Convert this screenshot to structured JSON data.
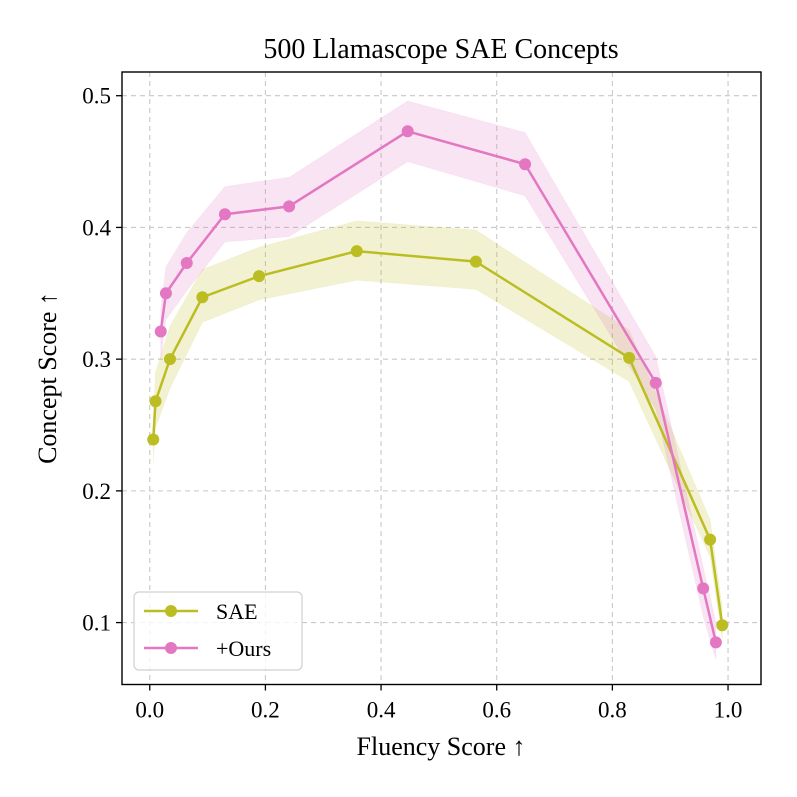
{
  "chart_data": {
    "type": "line",
    "title": "500 Llamascope SAE Concepts",
    "xlabel": "Fluency Score ↑",
    "ylabel": "Concept Score ↑",
    "xlim": [
      -0.048,
      1.057
    ],
    "ylim": [
      0.053,
      0.518
    ],
    "xticks": [
      0.0,
      0.2,
      0.4,
      0.6,
      0.8,
      1.0
    ],
    "xtick_labels": [
      "0.0",
      "0.2",
      "0.4",
      "0.6",
      "0.8",
      "1.0"
    ],
    "yticks": [
      0.1,
      0.2,
      0.3,
      0.4,
      0.5
    ],
    "ytick_labels": [
      "0.1",
      "0.2",
      "0.3",
      "0.4",
      "0.5"
    ],
    "grid": true,
    "legend_position": "bottom-left",
    "series": [
      {
        "name": "SAE",
        "color": "#bcbd22",
        "x": [
          0.006,
          0.01,
          0.035,
          0.091,
          0.189,
          0.358,
          0.564,
          0.829,
          0.969,
          0.99
        ],
        "y": [
          0.239,
          0.268,
          0.3,
          0.347,
          0.363,
          0.382,
          0.374,
          0.301,
          0.163,
          0.098
        ],
        "band_upper": [
          0.255,
          0.29,
          0.325,
          0.368,
          0.385,
          0.405,
          0.398,
          0.322,
          0.178,
          0.111
        ],
        "band_lower": [
          0.221,
          0.248,
          0.278,
          0.328,
          0.345,
          0.36,
          0.353,
          0.283,
          0.15,
          0.087
        ]
      },
      {
        "name": "+Ours",
        "color": "#e377c2",
        "x": [
          0.019,
          0.028,
          0.064,
          0.13,
          0.241,
          0.446,
          0.649,
          0.875,
          0.957,
          0.979
        ],
        "y": [
          0.321,
          0.35,
          0.373,
          0.41,
          0.416,
          0.473,
          0.448,
          0.282,
          0.126,
          0.085
        ],
        "band_upper": [
          0.338,
          0.37,
          0.396,
          0.431,
          0.438,
          0.496,
          0.472,
          0.302,
          0.142,
          0.1
        ],
        "band_lower": [
          0.3,
          0.33,
          0.352,
          0.389,
          0.393,
          0.45,
          0.424,
          0.262,
          0.105,
          0.072
        ]
      }
    ]
  }
}
